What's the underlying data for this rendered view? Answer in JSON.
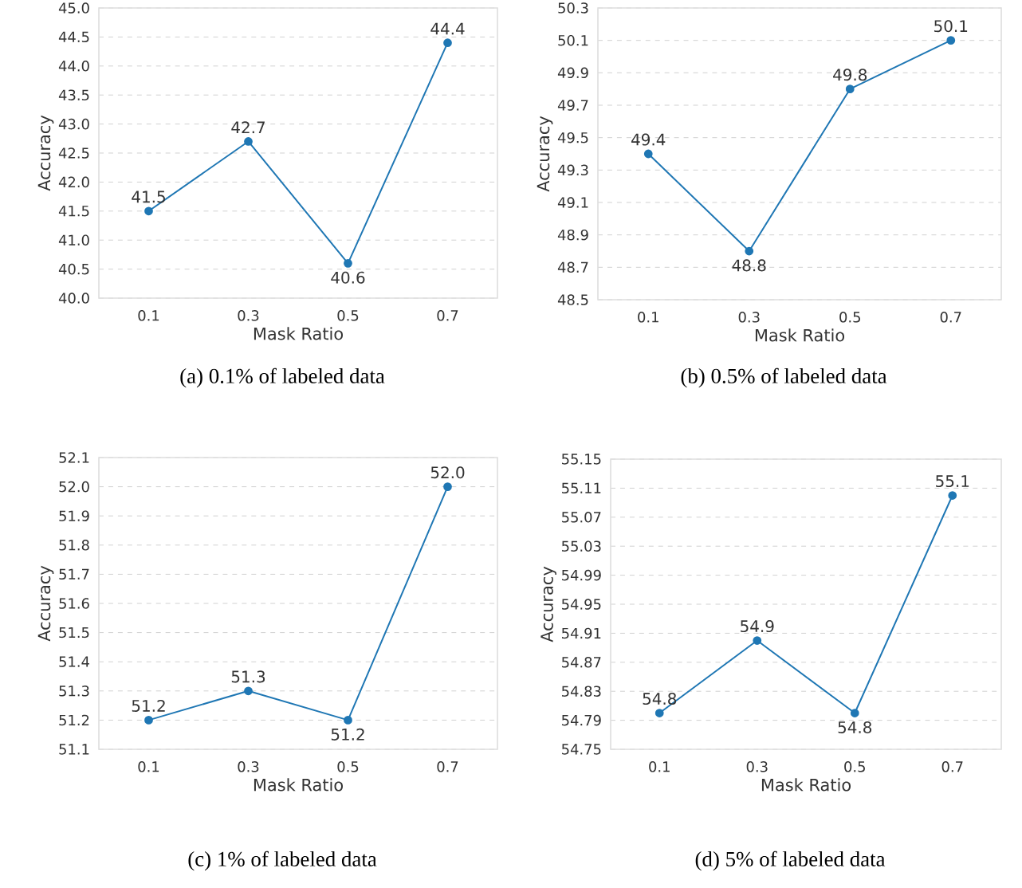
{
  "chart_data": [
    {
      "type": "line",
      "xlabel": "Mask Ratio",
      "ylabel": "Accuracy",
      "categories": [
        "0.1",
        "0.3",
        "0.5",
        "0.7"
      ],
      "series": [
        {
          "color": "#1f77b4",
          "values": [
            41.5,
            42.7,
            40.6,
            44.4
          ]
        }
      ],
      "ylim": [
        40,
        45
      ],
      "yticks": [
        {
          "value": 40,
          "label": "40.0"
        },
        40.5,
        {
          "value": 41,
          "label": "41.0"
        },
        41.5,
        {
          "value": 42,
          "label": "42.0"
        },
        42.5,
        {
          "value": 43,
          "label": "43.0"
        },
        43.5,
        {
          "value": 44,
          "label": "44.0"
        },
        44.5,
        {
          "value": 45,
          "label": "45.0"
        }
      ],
      "grid": "y",
      "marker": "circle",
      "line_style": "solid",
      "data_labels": true,
      "annotations": [
        "(a) 0.1% of labeled data"
      ]
    },
    {
      "type": "line",
      "xlabel": "Mask Ratio",
      "ylabel": "Accuracy",
      "categories": [
        "0.1",
        "0.3",
        "0.5",
        "0.7"
      ],
      "series": [
        {
          "color": "#1f77b4",
          "values": [
            49.4,
            48.8,
            49.8,
            50.1
          ]
        }
      ],
      "ylim": [
        48.5,
        50.3
      ],
      "yticks": [
        48.5,
        48.7,
        48.9,
        49.1,
        49.3,
        49.5,
        49.7,
        49.9,
        50.1,
        50.3
      ],
      "grid": "y",
      "marker": "circle",
      "line_style": "solid",
      "data_labels": true,
      "annotations": [
        "(b) 0.5% of labeled data"
      ]
    },
    {
      "type": "line",
      "xlabel": "Mask Ratio",
      "ylabel": "Accuracy",
      "categories": [
        "0.1",
        "0.3",
        "0.5",
        "0.7"
      ],
      "series": [
        {
          "color": "#1f77b4",
          "values": [
            51.2,
            51.3,
            51.2,
            52.0
          ],
          "value_labels": [
            "51.2",
            "51.3",
            "51.2",
            "52.0"
          ]
        }
      ],
      "ylim": [
        51.1,
        52.1
      ],
      "yticks": [
        51.1,
        51.2,
        51.3,
        51.4,
        51.5,
        51.6,
        51.7,
        51.8,
        51.9,
        {
          "value": 52,
          "label": "52.0"
        },
        52.1
      ],
      "grid": "y",
      "marker": "circle",
      "line_style": "solid",
      "annotations": [
        "(c) 1% of labeled data"
      ]
    },
    {
      "type": "line",
      "xlabel": "Mask Ratio",
      "ylabel": "Accuracy",
      "categories": [
        "0.1",
        "0.3",
        "0.5",
        "0.7"
      ],
      "series": [
        {
          "color": "#1f77b4",
          "values": [
            54.8,
            54.9,
            54.8,
            55.1
          ]
        }
      ],
      "ylim": [
        54.75,
        55.15
      ],
      "yticks": [
        54.75,
        54.79,
        54.83,
        54.87,
        54.91,
        54.95,
        54.99,
        55.03,
        55.07,
        55.11,
        55.15
      ],
      "grid": "y",
      "marker": "circle",
      "line_style": "solid",
      "data_labels": true,
      "annotations": [
        "(d) 5% of labeled data"
      ]
    }
  ]
}
